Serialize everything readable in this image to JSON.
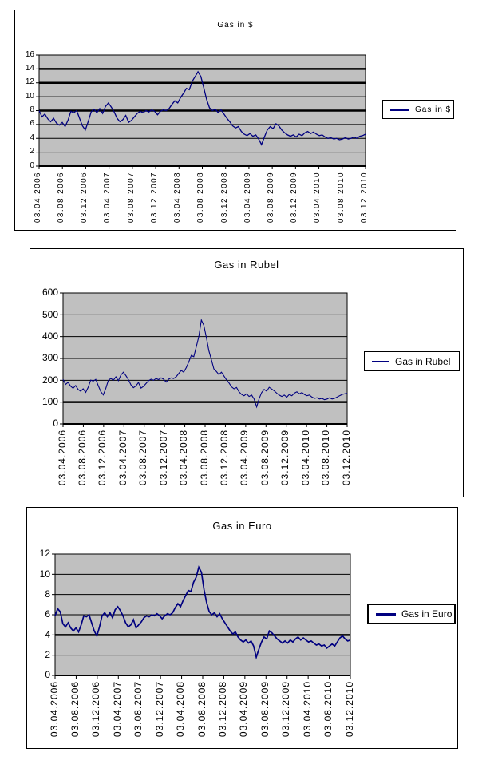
{
  "chart_data": [
    {
      "type": "line",
      "title": "Gas  in $",
      "legend_label": "Gas  in $",
      "legend_position": "right",
      "line_color": "#000080",
      "plot_bg_color": "#c0c0c0",
      "grid": true,
      "ylim": [
        0,
        16
      ],
      "y_ticks": [
        16,
        14,
        12,
        10,
        8,
        6,
        4,
        2,
        0
      ],
      "bold_gridlines_at": [
        14,
        12,
        8
      ],
      "x_label_rotation": 90,
      "x_tick_labels": [
        "03.04.2006",
        "03.08.2006",
        "03.12.2006",
        "03.04.2007",
        "03.08.2007",
        "03.12.2007",
        "03.04.2008",
        "03.08.2008",
        "03.12.2008",
        "03.04.2009",
        "03.08.2009",
        "03.12.2009",
        "03.04.2010",
        "03.08.2010",
        "03.12.2010"
      ],
      "values": [
        8.0,
        7.1,
        7.5,
        6.8,
        6.4,
        6.9,
        6.2,
        5.9,
        6.3,
        5.7,
        6.6,
        7.9,
        7.7,
        8.0,
        6.9,
        5.8,
        5.2,
        6.4,
        7.8,
        8.2,
        7.7,
        8.3,
        7.6,
        8.6,
        9.1,
        8.5,
        7.8,
        6.9,
        6.4,
        6.7,
        7.3,
        6.3,
        6.6,
        7.1,
        7.6,
        7.9,
        7.7,
        8.0,
        7.8,
        8.1,
        7.9,
        7.4,
        7.9,
        8.1,
        8.0,
        8.3,
        8.9,
        9.4,
        9.1,
        9.9,
        10.5,
        11.2,
        11.0,
        12.2,
        12.9,
        13.6,
        12.9,
        11.3,
        9.6,
        8.4,
        8.0,
        8.2,
        7.7,
        8.1,
        7.5,
        6.9,
        6.4,
        5.8,
        5.5,
        5.7,
        5.0,
        4.6,
        4.4,
        4.7,
        4.3,
        4.5,
        3.9,
        3.1,
        4.2,
        5.2,
        5.7,
        5.4,
        6.1,
        5.8,
        5.2,
        4.8,
        4.5,
        4.3,
        4.5,
        4.2,
        4.6,
        4.4,
        4.8,
        5.0,
        4.7,
        4.9,
        4.6,
        4.4,
        4.5,
        4.2,
        4.0,
        4.1,
        3.9,
        4.0,
        3.8,
        3.9,
        4.1,
        3.9,
        4.0,
        4.2,
        4.0,
        4.3,
        4.4,
        4.6
      ]
    },
    {
      "type": "line",
      "title": "Gas in Rubel",
      "legend_label": "Gas in Rubel",
      "legend_position": "right",
      "line_color": "#000080",
      "plot_bg_color": "#c0c0c0",
      "grid": true,
      "ylim": [
        0,
        600
      ],
      "y_ticks": [
        600,
        500,
        400,
        300,
        200,
        100,
        0
      ],
      "bold_gridlines_at": [
        100
      ],
      "x_label_rotation": 90,
      "x_tick_labels": [
        "03.04.2006",
        "03.08.2006",
        "03.12.2006",
        "03.04.2007",
        "03.08.2007",
        "03.12.2007",
        "03.04.2008",
        "03.08.2008",
        "03.12.2008",
        "03.04.2009",
        "03.08.2009",
        "03.12.2009",
        "03.04.2010",
        "03.08.2010",
        "03.12.2010"
      ],
      "values": [
        204,
        181,
        191,
        173,
        163,
        176,
        158,
        150,
        161,
        145,
        168,
        201,
        196,
        204,
        176,
        148,
        133,
        163,
        199,
        209,
        200,
        216,
        198,
        224,
        237,
        221,
        203,
        179,
        166,
        174,
        190,
        164,
        172,
        185,
        198,
        205,
        200,
        208,
        203,
        211,
        205,
        192,
        205,
        211,
        208,
        216,
        231,
        245,
        237,
        258,
        284,
        314,
        308,
        354,
        400,
        476,
        452,
        396,
        336,
        294,
        252,
        240,
        226,
        237,
        220,
        202,
        188,
        170,
        161,
        167,
        147,
        135,
        129,
        138,
        126,
        132,
        114,
        78,
        116,
        144,
        158,
        150,
        168,
        160,
        152,
        141,
        132,
        126,
        132,
        123,
        135,
        129,
        141,
        147,
        138,
        144,
        135,
        129,
        132,
        123,
        117,
        120,
        114,
        117,
        111,
        114,
        120,
        114,
        117,
        123,
        129,
        135,
        138,
        140
      ]
    },
    {
      "type": "line",
      "title": "Gas in Euro",
      "legend_label": "Gas in Euro",
      "legend_position": "right",
      "line_color": "#000080",
      "plot_bg_color": "#c0c0c0",
      "grid": true,
      "ylim": [
        0,
        12
      ],
      "y_ticks": [
        12,
        10,
        8,
        6,
        4,
        2,
        0
      ],
      "bold_gridlines_at": [
        4
      ],
      "x_label_rotation": 90,
      "x_tick_labels": [
        "03.04.2006",
        "03.08.2006",
        "03.12.2006",
        "03.04.2007",
        "03.08.2007",
        "03.12.2007",
        "03.04.2008",
        "03.08.2008",
        "03.12.2008",
        "03.04.2009",
        "03.08.2009",
        "03.12.2009",
        "03.04.2010",
        "03.08.2010",
        "03.12.2010"
      ],
      "values": [
        5.9,
        6.6,
        6.3,
        5.1,
        4.8,
        5.2,
        4.7,
        4.4,
        4.7,
        4.3,
        5.0,
        5.9,
        5.8,
        6.0,
        5.2,
        4.4,
        3.9,
        4.8,
        5.9,
        6.2,
        5.8,
        6.2,
        5.7,
        6.5,
        6.8,
        6.4,
        5.9,
        5.2,
        4.8,
        5.0,
        5.5,
        4.7,
        5.0,
        5.3,
        5.7,
        5.9,
        5.8,
        6.0,
        5.9,
        6.1,
        5.9,
        5.6,
        5.9,
        6.1,
        6.0,
        6.2,
        6.7,
        7.1,
        6.8,
        7.4,
        7.9,
        8.4,
        8.3,
        9.2,
        9.7,
        10.7,
        10.2,
        8.5,
        7.2,
        6.3,
        6.0,
        6.2,
        5.8,
        6.1,
        5.6,
        5.2,
        4.8,
        4.4,
        4.1,
        4.3,
        3.8,
        3.5,
        3.3,
        3.5,
        3.2,
        3.4,
        2.9,
        1.8,
        2.6,
        3.3,
        3.8,
        3.6,
        4.4,
        4.2,
        3.9,
        3.6,
        3.4,
        3.2,
        3.4,
        3.2,
        3.5,
        3.3,
        3.6,
        3.8,
        3.5,
        3.7,
        3.5,
        3.3,
        3.4,
        3.2,
        3.0,
        3.1,
        2.9,
        3.0,
        2.7,
        2.9,
        3.1,
        2.9,
        3.3,
        3.7,
        3.9,
        3.6,
        3.4,
        3.5
      ]
    }
  ]
}
